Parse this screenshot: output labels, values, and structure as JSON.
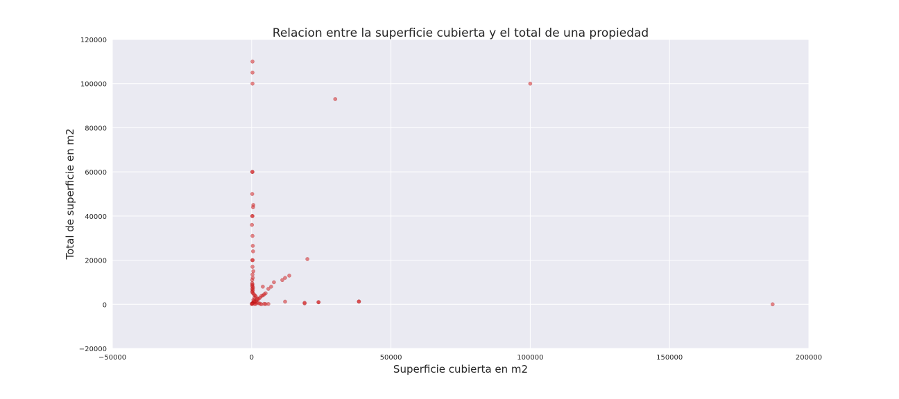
{
  "chart_data": {
    "type": "scatter",
    "title": "Relacion entre la superficie cubierta y el total de una propiedad",
    "xlabel": "Superficie cubierta en m2",
    "ylabel": "Total de superficie en m2",
    "xlim": [
      -50000,
      200000
    ],
    "ylim": [
      -20000,
      120000
    ],
    "xticks": [
      -50000,
      0,
      50000,
      100000,
      150000,
      200000
    ],
    "yticks": [
      -20000,
      0,
      20000,
      40000,
      60000,
      80000,
      100000,
      120000
    ],
    "xtick_labels": [
      "−50000",
      "0",
      "50000",
      "100000",
      "150000",
      "200000"
    ],
    "ytick_labels": [
      "−20000",
      "0",
      "20000",
      "40000",
      "60000",
      "80000",
      "100000",
      "120000"
    ],
    "grid": true,
    "colors": {
      "background": "#eaeaf2",
      "grid": "#ffffff",
      "marker": "#d62728"
    },
    "series": [
      {
        "points": [
          [
            300,
            110000
          ],
          [
            300,
            105000
          ],
          [
            300,
            100000
          ],
          [
            30000,
            93000
          ],
          [
            100000,
            100000
          ],
          [
            300,
            60000
          ],
          [
            200,
            60000
          ],
          [
            200,
            50000
          ],
          [
            600,
            45000
          ],
          [
            500,
            44000
          ],
          [
            300,
            40000
          ],
          [
            200,
            40000
          ],
          [
            100,
            36000
          ],
          [
            300,
            31000
          ],
          [
            400,
            26500
          ],
          [
            500,
            24000
          ],
          [
            200,
            20000
          ],
          [
            400,
            20000
          ],
          [
            20000,
            20500
          ],
          [
            300,
            17000
          ],
          [
            600,
            15000
          ],
          [
            300,
            13500
          ],
          [
            400,
            12000
          ],
          [
            200,
            11000
          ],
          [
            13500,
            13000
          ],
          [
            12000,
            12000
          ],
          [
            11000,
            11000
          ],
          [
            8000,
            10000
          ],
          [
            7000,
            8000
          ],
          [
            4000,
            8000
          ],
          [
            6000,
            7000
          ],
          [
            5000,
            5000
          ],
          [
            4500,
            4500
          ],
          [
            4000,
            4000
          ],
          [
            3500,
            3800
          ],
          [
            3000,
            3000
          ],
          [
            2500,
            2500
          ],
          [
            2000,
            2000
          ],
          [
            1500,
            1500
          ],
          [
            1000,
            1200
          ],
          [
            800,
            900
          ],
          [
            500,
            700
          ],
          [
            300,
            500
          ],
          [
            200,
            400
          ],
          [
            150,
            300
          ],
          [
            100,
            200
          ],
          [
            50,
            100
          ],
          [
            200,
            9500
          ],
          [
            300,
            9000
          ],
          [
            200,
            8500
          ],
          [
            300,
            8000
          ],
          [
            500,
            7500
          ],
          [
            200,
            7000
          ],
          [
            400,
            6500
          ],
          [
            300,
            6000
          ],
          [
            200,
            5500
          ],
          [
            500,
            5000
          ],
          [
            800,
            4500
          ],
          [
            1200,
            4000
          ],
          [
            1500,
            3500
          ],
          [
            1000,
            3000
          ],
          [
            2000,
            2500
          ],
          [
            600,
            2000
          ],
          [
            800,
            1500
          ],
          [
            1200,
            1000
          ],
          [
            1800,
            800
          ],
          [
            2500,
            500
          ],
          [
            3000,
            300
          ],
          [
            1500,
            200
          ],
          [
            1000,
            100
          ],
          [
            5000,
            100
          ],
          [
            6000,
            150
          ],
          [
            4500,
            200
          ],
          [
            3500,
            0
          ],
          [
            19000,
            400
          ],
          [
            19000,
            700
          ],
          [
            24000,
            900
          ],
          [
            24000,
            1000
          ],
          [
            38500,
            1200
          ],
          [
            38500,
            1300
          ],
          [
            12000,
            1200
          ],
          [
            187000,
            0
          ]
        ]
      }
    ]
  }
}
